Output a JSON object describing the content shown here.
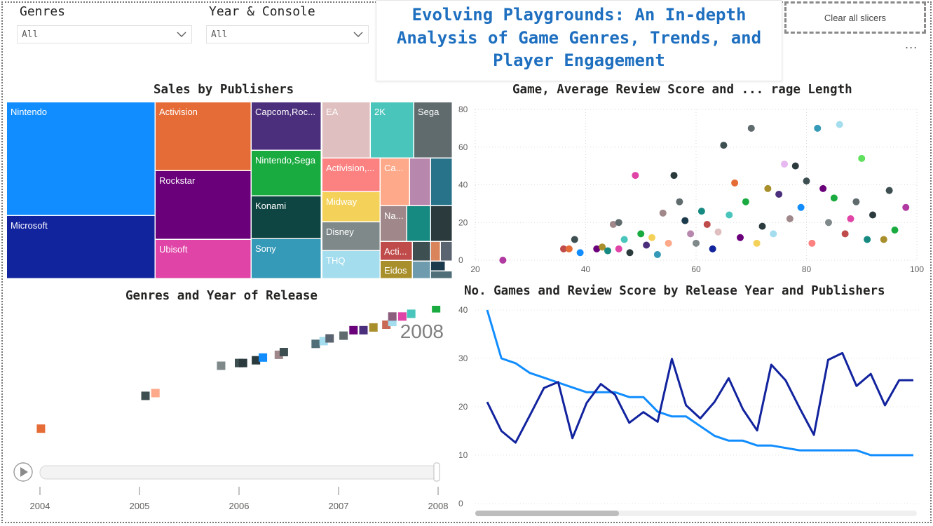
{
  "slicers": {
    "genres": {
      "label": "Genres",
      "value": "All"
    },
    "year_console": {
      "label": "Year & Console",
      "value": "All"
    }
  },
  "report_title": {
    "line1": "Evolving Playgrounds: An In-depth",
    "line2": "Analysis of Game Genres, Trends, and",
    "line3": "Player Engagement"
  },
  "clear_button": "Clear all slicers",
  "more_options": "...",
  "colors": {
    "accent_title": "#1e6fbf",
    "line_light": "#118dff",
    "line_dark": "#12239e"
  },
  "treemap": {
    "title": "Sales by Publishers",
    "tiles": [
      {
        "label": "Nintendo",
        "color": "#118dff"
      },
      {
        "label": "Microsoft",
        "color": "#12239e"
      },
      {
        "label": "Activision",
        "color": "#e66c37"
      },
      {
        "label": "Rockstar",
        "color": "#6b007b"
      },
      {
        "label": "Ubisoft",
        "color": "#e044a7"
      },
      {
        "label": "Capcom,Roc...",
        "color": "#4b2f7c"
      },
      {
        "label": "Nintendo,Sega",
        "color": "#1aab40"
      },
      {
        "label": "Konami",
        "color": "#0e4441"
      },
      {
        "label": "Sony",
        "color": "#3599b8"
      },
      {
        "label": "EA",
        "color": "#dfbfbf"
      },
      {
        "label": "2K",
        "color": "#4ac5bb"
      },
      {
        "label": "Sega",
        "color": "#5f6b6d"
      },
      {
        "label": "Activision,...",
        "color": "#fb8281"
      },
      {
        "label": "Ca...",
        "color": "#fea98a"
      },
      {
        "label": "",
        "color": "#b887ad"
      },
      {
        "label": "",
        "color": "#28738a"
      },
      {
        "label": "Midway",
        "color": "#f4d25a"
      },
      {
        "label": "Disney",
        "color": "#7f898a"
      },
      {
        "label": "THQ",
        "color": "#a4ddee"
      },
      {
        "label": "Na...",
        "color": "#a0888a"
      },
      {
        "label": "",
        "color": "#168980"
      },
      {
        "label": "",
        "color": "#2b3a3d"
      },
      {
        "label": "Acti...",
        "color": "#c04b4b"
      },
      {
        "label": "Eidos",
        "color": "#a88f2c"
      },
      {
        "label": "",
        "color": "#3e4f52"
      },
      {
        "label": "",
        "color": "#d9845a"
      },
      {
        "label": "",
        "color": "#5a6370"
      },
      {
        "label": "",
        "color": "#6e9cae"
      },
      {
        "label": "",
        "color": "#1b3a4b"
      },
      {
        "label": "",
        "color": "#4f6e78"
      }
    ]
  },
  "scatter": {
    "title": "Game, Average Review Score and ... rage Length",
    "x_ticks": [
      "20",
      "40",
      "60",
      "80",
      "100"
    ],
    "y_ticks": [
      "0",
      "20",
      "40",
      "60",
      "80"
    ]
  },
  "genres_year": {
    "title": "Genres and Year of Release",
    "current_year": "2008",
    "play_axis_ticks": [
      "2004",
      "2005",
      "2006",
      "2007",
      "2008"
    ]
  },
  "line_chart": {
    "title": "No. Games and Review Score by Release Year and Publishers",
    "y_ticks": [
      "0",
      "10",
      "20",
      "30",
      "40"
    ]
  },
  "chart_data": [
    {
      "type": "treemap",
      "title": "Sales by Publishers",
      "categories": [
        "Nintendo",
        "Microsoft",
        "Activision",
        "Rockstar",
        "Ubisoft",
        "Capcom,Roc...",
        "Nintendo,Sega",
        "Konami",
        "Sony",
        "EA",
        "2K",
        "Sega",
        "Activision,...",
        "Ca...",
        "Midway",
        "Disney",
        "THQ",
        "Na...",
        "Acti...",
        "Eidos"
      ]
    },
    {
      "type": "scatter",
      "title": "Game, Average Review Score and ... rage Length",
      "xlim": [
        20,
        100
      ],
      "ylim": [
        0,
        80
      ],
      "points": [
        {
          "x": 25,
          "y": 0,
          "c": "#b03aa2"
        },
        {
          "x": 36,
          "y": 6,
          "c": "#c04b4b"
        },
        {
          "x": 37,
          "y": 6,
          "c": "#e66c37"
        },
        {
          "x": 38,
          "y": 11,
          "c": "#3e4f52"
        },
        {
          "x": 39,
          "y": 4,
          "c": "#118dff"
        },
        {
          "x": 42,
          "y": 6,
          "c": "#6b007b"
        },
        {
          "x": 43,
          "y": 7,
          "c": "#a88f2c"
        },
        {
          "x": 44,
          "y": 5,
          "c": "#168980"
        },
        {
          "x": 45,
          "y": 19,
          "c": "#a0888a"
        },
        {
          "x": 46,
          "y": 20,
          "c": "#5f6b6d"
        },
        {
          "x": 46,
          "y": 6,
          "c": "#e044a7"
        },
        {
          "x": 47,
          "y": 11,
          "c": "#4ac5bb"
        },
        {
          "x": 48,
          "y": 4,
          "c": "#2b3a3d"
        },
        {
          "x": 49,
          "y": 45,
          "c": "#e044a7"
        },
        {
          "x": 50,
          "y": 14,
          "c": "#1aab40"
        },
        {
          "x": 51,
          "y": 8,
          "c": "#4b2f7c"
        },
        {
          "x": 52,
          "y": 12,
          "c": "#f4d25a"
        },
        {
          "x": 53,
          "y": 3,
          "c": "#3599b8"
        },
        {
          "x": 54,
          "y": 25,
          "c": "#a0888a"
        },
        {
          "x": 55,
          "y": 9,
          "c": "#fea98a"
        },
        {
          "x": 56,
          "y": 45,
          "c": "#2b3a3d"
        },
        {
          "x": 57,
          "y": 31,
          "c": "#5f6b6d"
        },
        {
          "x": 58,
          "y": 21,
          "c": "#1b3a4b"
        },
        {
          "x": 59,
          "y": 14,
          "c": "#b887ad"
        },
        {
          "x": 60,
          "y": 9,
          "c": "#7f898a"
        },
        {
          "x": 61,
          "y": 26,
          "c": "#168980"
        },
        {
          "x": 62,
          "y": 19,
          "c": "#c04b4b"
        },
        {
          "x": 63,
          "y": 6,
          "c": "#12239e"
        },
        {
          "x": 64,
          "y": 15,
          "c": "#dfbfbf"
        },
        {
          "x": 65,
          "y": 61,
          "c": "#3e4f52"
        },
        {
          "x": 66,
          "y": 24,
          "c": "#4ac5bb"
        },
        {
          "x": 67,
          "y": 41,
          "c": "#e66c37"
        },
        {
          "x": 68,
          "y": 12,
          "c": "#6b007b"
        },
        {
          "x": 69,
          "y": 31,
          "c": "#1aab40"
        },
        {
          "x": 70,
          "y": 70,
          "c": "#5f6b6d"
        },
        {
          "x": 71,
          "y": 9,
          "c": "#f4d25a"
        },
        {
          "x": 72,
          "y": 18,
          "c": "#2b3a3d"
        },
        {
          "x": 73,
          "y": 38,
          "c": "#a88f2c"
        },
        {
          "x": 74,
          "y": 14,
          "c": "#a4ddee"
        },
        {
          "x": 75,
          "y": 35,
          "c": "#4b2f7c"
        },
        {
          "x": 76,
          "y": 51,
          "c": "#e6b8ef"
        },
        {
          "x": 77,
          "y": 22,
          "c": "#a0888a"
        },
        {
          "x": 78,
          "y": 50,
          "c": "#2b3a3d"
        },
        {
          "x": 79,
          "y": 28,
          "c": "#118dff"
        },
        {
          "x": 80,
          "y": 42,
          "c": "#3e4f52"
        },
        {
          "x": 81,
          "y": 9,
          "c": "#fb8281"
        },
        {
          "x": 82,
          "y": 70,
          "c": "#3599b8"
        },
        {
          "x": 83,
          "y": 38,
          "c": "#6b007b"
        },
        {
          "x": 84,
          "y": 20,
          "c": "#7f898a"
        },
        {
          "x": 85,
          "y": 33,
          "c": "#1aab40"
        },
        {
          "x": 86,
          "y": 72,
          "c": "#a4ddee"
        },
        {
          "x": 87,
          "y": 14,
          "c": "#c04b4b"
        },
        {
          "x": 88,
          "y": 22,
          "c": "#e044a7"
        },
        {
          "x": 89,
          "y": 31,
          "c": "#5f6b6d"
        },
        {
          "x": 90,
          "y": 54,
          "c": "#5fe05f"
        },
        {
          "x": 91,
          "y": 11,
          "c": "#168980"
        },
        {
          "x": 92,
          "y": 24,
          "c": "#2b3a3d"
        },
        {
          "x": 94,
          "y": 11,
          "c": "#a88f2c"
        },
        {
          "x": 95,
          "y": 37,
          "c": "#3e4f52"
        },
        {
          "x": 96,
          "y": 16,
          "c": "#1aab40"
        },
        {
          "x": 98,
          "y": 28,
          "c": "#b03aa2"
        }
      ]
    },
    {
      "type": "scatter",
      "title": "Genres and Year of Release",
      "current_year": "2008",
      "points": [
        {
          "x": 2004.01,
          "y": 2,
          "c": "#e66c37"
        },
        {
          "x": 2005.06,
          "y": 14,
          "c": "#3e4f52"
        },
        {
          "x": 2005.16,
          "y": 15,
          "c": "#fea98a"
        },
        {
          "x": 2005.82,
          "y": 25,
          "c": "#7f898a"
        },
        {
          "x": 2006.0,
          "y": 26,
          "c": "#3e4f52"
        },
        {
          "x": 2006.04,
          "y": 26,
          "c": "#2b3a3d"
        },
        {
          "x": 2006.17,
          "y": 27,
          "c": "#2b3a3d"
        },
        {
          "x": 2006.24,
          "y": 28,
          "c": "#118dff"
        },
        {
          "x": 2006.4,
          "y": 29,
          "c": "#a0888a"
        },
        {
          "x": 2006.45,
          "y": 30,
          "c": "#3e4f52"
        },
        {
          "x": 2006.77,
          "y": 33,
          "c": "#4f6e78"
        },
        {
          "x": 2006.85,
          "y": 34,
          "c": "#a4ddee"
        },
        {
          "x": 2006.91,
          "y": 35,
          "c": "#5a6370"
        },
        {
          "x": 2007.05,
          "y": 36,
          "c": "#5f6b6d"
        },
        {
          "x": 2007.15,
          "y": 38,
          "c": "#6b007b"
        },
        {
          "x": 2007.25,
          "y": 38,
          "c": "#4b2f7c"
        },
        {
          "x": 2007.35,
          "y": 39,
          "c": "#a88f2c"
        },
        {
          "x": 2007.48,
          "y": 40,
          "c": "#c96a56"
        },
        {
          "x": 2007.54,
          "y": 41,
          "c": "#a4ddee"
        },
        {
          "x": 2007.54,
          "y": 43,
          "c": "#8a5e7c"
        },
        {
          "x": 2007.64,
          "y": 43,
          "c": "#e044a7"
        },
        {
          "x": 2007.73,
          "y": 44,
          "c": "#4ac5bb"
        },
        {
          "x": 2007.98,
          "y": 46,
          "c": "#1aab40"
        }
      ]
    },
    {
      "type": "line",
      "title": "No. Games and Review Score by Release Year and Publishers",
      "ylim": [
        0,
        40
      ],
      "x": [
        1,
        2,
        3,
        4,
        5,
        6,
        7,
        8,
        9,
        10,
        11,
        12,
        13,
        14,
        15,
        16,
        17,
        18,
        19,
        20,
        21,
        22,
        23,
        24,
        25,
        26,
        27,
        28,
        29,
        30,
        31
      ],
      "series": [
        {
          "color": "#118dff",
          "values": [
            40,
            30,
            29,
            27,
            26,
            25,
            24,
            23,
            23,
            23,
            22,
            22,
            19,
            18,
            18,
            16,
            14,
            13,
            13,
            12,
            12,
            11.5,
            11,
            11,
            11,
            11,
            11,
            10,
            10,
            10,
            10
          ]
        },
        {
          "color": "#12239e",
          "values": [
            21,
            15,
            12.6,
            18.2,
            23.9,
            25.1,
            13.5,
            20.8,
            24.7,
            22.5,
            16.7,
            18.9,
            16.9,
            29.9,
            20.3,
            17.6,
            21.0,
            25.9,
            19.5,
            15.1,
            28.7,
            25.5,
            19.7,
            14.2,
            29.7,
            31.1,
            24.3,
            26.8,
            20.3,
            25.5,
            25.5
          ]
        }
      ]
    }
  ]
}
